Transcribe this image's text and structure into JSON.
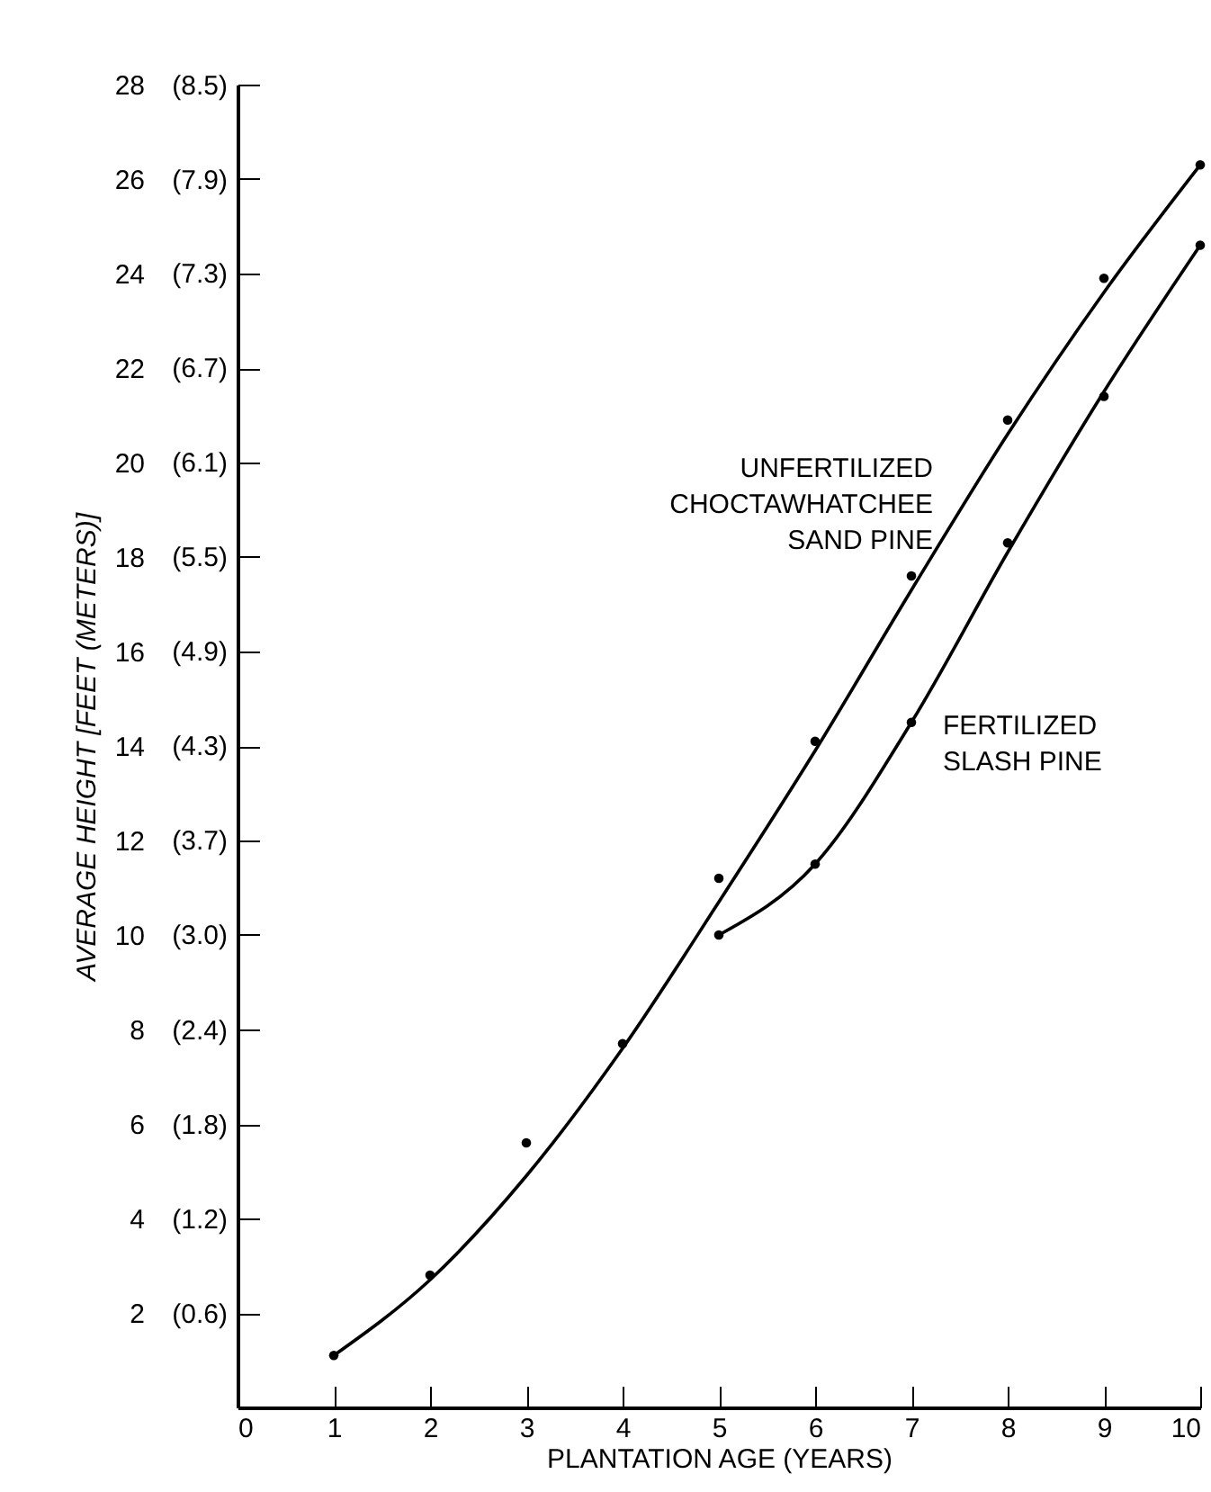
{
  "chart_data": {
    "type": "line",
    "xlabel": "PLANTATION AGE (YEARS)",
    "ylabel": "AVERAGE HEIGHT [FEET (METERS)]",
    "xlim": [
      0,
      10
    ],
    "xticks": [
      0,
      1,
      2,
      3,
      4,
      5,
      6,
      7,
      8,
      9,
      10
    ],
    "ylim": [
      0,
      28
    ],
    "yticks": [
      2,
      4,
      6,
      8,
      10,
      12,
      14,
      16,
      18,
      20,
      22,
      24,
      26,
      28
    ],
    "y2lim": [
      0,
      8.53
    ],
    "y2ticks": [
      {
        "value": 0.61,
        "label": "(0.6)"
      },
      {
        "value": 1.22,
        "label": "(1.2)"
      },
      {
        "value": 1.83,
        "label": "(1.8)"
      },
      {
        "value": 2.44,
        "label": "(2.4)"
      },
      {
        "value": 3.05,
        "label": "(3.0)"
      },
      {
        "value": 3.66,
        "label": "(3.7)"
      },
      {
        "value": 4.27,
        "label": "(4.3)"
      },
      {
        "value": 4.88,
        "label": "(4.9)"
      },
      {
        "value": 5.49,
        "label": "(5.5)"
      },
      {
        "value": 6.1,
        "label": "(6.1)"
      },
      {
        "value": 6.71,
        "label": "(6.7)"
      },
      {
        "value": 7.32,
        "label": "(7.3)"
      },
      {
        "value": 7.92,
        "label": "(7.9)"
      },
      {
        "value": 8.53,
        "label": "(8.5)"
      }
    ],
    "grid": false,
    "line_style": "solid",
    "series": [
      {
        "name": "UNFERTILIZED CHOCTAWHATCHEE SAND PINE",
        "color": "#000000",
        "x": [
          1,
          2,
          3,
          4,
          5,
          6,
          7,
          8,
          9,
          10
        ],
        "values": [
          1.1,
          2.7,
          4.9,
          7.6,
          10.7,
          13.9,
          17.3,
          20.6,
          23.6,
          26.3
        ]
      },
      {
        "name": "FERTILIZED SLASH PINE",
        "color": "#000000",
        "x": [
          5,
          6,
          7,
          8,
          9,
          10
        ],
        "values": [
          10.0,
          11.5,
          14.5,
          18.1,
          21.5,
          24.6
        ]
      },
      {
        "type": "scatter",
        "marker": "circle",
        "color": "#000000",
        "x": [
          1,
          2,
          3,
          4,
          5,
          6,
          7,
          8,
          9,
          10
        ],
        "values": [
          1.1,
          2.8,
          5.6,
          7.7,
          11.2,
          14.1,
          17.6,
          20.9,
          23.9,
          26.3
        ]
      },
      {
        "type": "scatter",
        "marker": "circle",
        "color": "#000000",
        "x": [
          5,
          6,
          7,
          8,
          9,
          10
        ],
        "values": [
          10.0,
          11.5,
          14.5,
          18.3,
          21.4,
          24.6
        ]
      }
    ]
  }
}
